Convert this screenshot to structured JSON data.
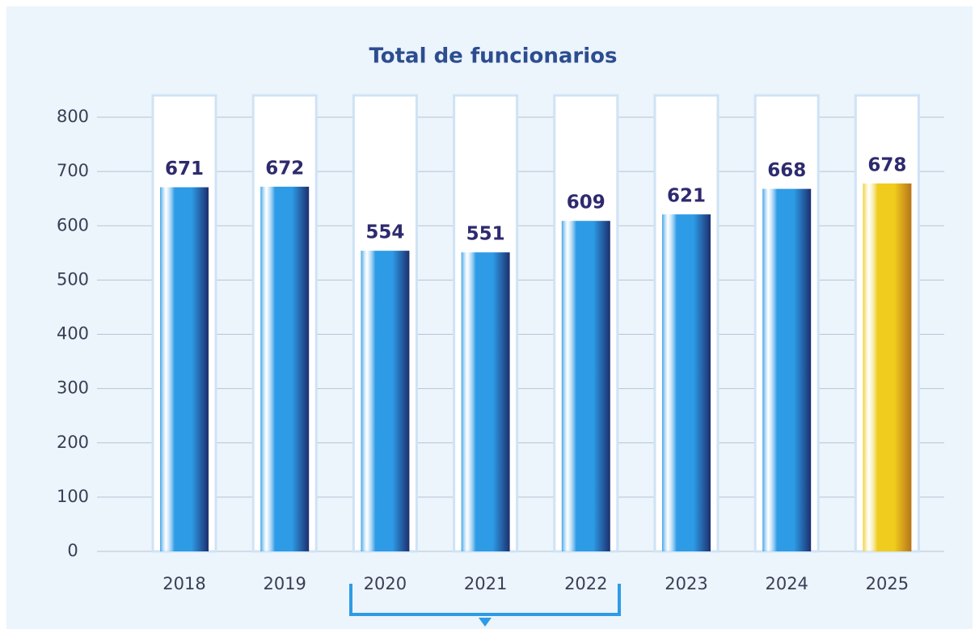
{
  "chart_data": {
    "type": "bar",
    "title": "Total de funcionarios",
    "categories": [
      "2018",
      "2019",
      "2020",
      "2021",
      "2022",
      "2023",
      "2024",
      "2025"
    ],
    "values": [
      671,
      672,
      554,
      551,
      609,
      621,
      668,
      678
    ],
    "colors": [
      "#2e9be6",
      "#2e9be6",
      "#2e9be6",
      "#2e9be6",
      "#2e9be6",
      "#2e9be6",
      "#2e9be6",
      "#f0cc1e"
    ],
    "ylim": [
      0,
      800
    ],
    "yticks": [
      0,
      100,
      200,
      300,
      400,
      500,
      600,
      700,
      800
    ],
    "grid": true
  }
}
